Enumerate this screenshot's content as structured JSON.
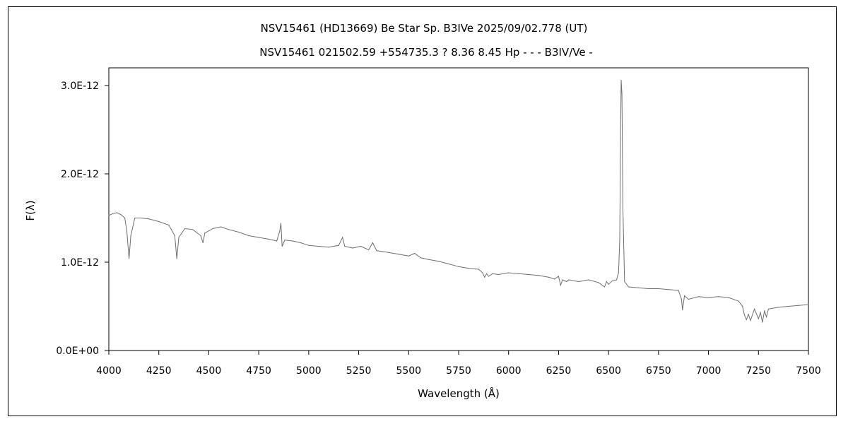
{
  "chart_data": {
    "type": "line",
    "title": "NSV15461 (HD13669)   Be Star   Sp. B3IVe   2025/09/02.778 (UT)",
    "subtitle": "NSV15461 021502.59 +554735.3 ? 8.36 8.45 Hp - - - B3IV/Ve -",
    "xlabel": "Wavelength (Å)",
    "ylabel": "F(λ)",
    "xlim": [
      4000,
      7500
    ],
    "ylim": [
      0,
      3.2e-12
    ],
    "x_ticks": [
      4000,
      4250,
      4500,
      4750,
      5000,
      5250,
      5500,
      5750,
      6000,
      6250,
      6500,
      6750,
      7000,
      7250,
      7500
    ],
    "y_ticks": [
      0,
      1e-12,
      2e-12,
      3e-12
    ],
    "y_tick_labels": [
      "0.0E+00",
      "1.0E-12",
      "2.0E-12",
      "3.0E-12"
    ],
    "grid": false,
    "legend": "none",
    "line_color": "#6e6e6e",
    "series": [
      {
        "x": [
          4000,
          4020,
          4040,
          4060,
          4080,
          4090,
          4101,
          4110,
          4130,
          4160,
          4200,
          4250,
          4300,
          4330,
          4340,
          4350,
          4380,
          4420,
          4460,
          4471,
          4480,
          4520,
          4560,
          4600,
          4650,
          4700,
          4750,
          4800,
          4840,
          4855,
          4861,
          4867,
          4880,
          4920,
          4960,
          5000,
          5050,
          5100,
          5150,
          5169,
          5180,
          5220,
          5260,
          5300,
          5320,
          5340,
          5400,
          5450,
          5500,
          5530,
          5560,
          5600,
          5650,
          5700,
          5750,
          5800,
          5850,
          5870,
          5880,
          5890,
          5900,
          5920,
          5950,
          6000,
          6050,
          6100,
          6150,
          6200,
          6230,
          6250,
          6260,
          6270,
          6290,
          6300,
          6350,
          6400,
          6450,
          6480,
          6490,
          6500,
          6520,
          6540,
          6550,
          6556,
          6560,
          6563,
          6567,
          6572,
          6580,
          6600,
          6650,
          6700,
          6750,
          6800,
          6850,
          6865,
          6870,
          6880,
          6900,
          6950,
          7000,
          7050,
          7100,
          7150,
          7170,
          7180,
          7190,
          7200,
          7210,
          7230,
          7250,
          7260,
          7270,
          7280,
          7290,
          7300,
          7350,
          7400,
          7450,
          7500
        ],
        "y": [
          1.53e-12,
          1.55e-12,
          1.56e-12,
          1.54e-12,
          1.5e-12,
          1.35e-12,
          1.04e-12,
          1.3e-12,
          1.5e-12,
          1.5e-12,
          1.49e-12,
          1.46e-12,
          1.42e-12,
          1.3e-12,
          1.04e-12,
          1.28e-12,
          1.38e-12,
          1.37e-12,
          1.3e-12,
          1.22e-12,
          1.33e-12,
          1.38e-12,
          1.4e-12,
          1.37e-12,
          1.34e-12,
          1.3e-12,
          1.28e-12,
          1.26e-12,
          1.24e-12,
          1.35e-12,
          1.44e-12,
          1.18e-12,
          1.25e-12,
          1.24e-12,
          1.22e-12,
          1.19e-12,
          1.18e-12,
          1.17e-12,
          1.19e-12,
          1.28e-12,
          1.18e-12,
          1.16e-12,
          1.18e-12,
          1.14e-12,
          1.22e-12,
          1.13e-12,
          1.11e-12,
          1.09e-12,
          1.07e-12,
          1.1e-12,
          1.05e-12,
          1.03e-12,
          1.01e-12,
          9.8e-13,
          9.5e-13,
          9.3e-13,
          9.2e-13,
          8.8e-13,
          8.3e-13,
          8.7e-13,
          8.4e-13,
          8.7e-13,
          8.6e-13,
          8.8e-13,
          8.7e-13,
          8.6e-13,
          8.5e-13,
          8.3e-13,
          8.1e-13,
          8.4e-13,
          7.4e-13,
          8e-13,
          7.8e-13,
          8e-13,
          7.8e-13,
          8e-13,
          7.7e-13,
          7.2e-13,
          7.8e-13,
          7.5e-13,
          7.9e-13,
          8e-13,
          8.8e-13,
          1.25e-12,
          2.4e-12,
          3.06e-12,
          2.9e-12,
          1.6e-12,
          7.8e-13,
          7.2e-13,
          7.1e-13,
          7e-13,
          7e-13,
          6.9e-13,
          6.8e-13,
          5.8e-13,
          4.6e-13,
          6.2e-13,
          5.8e-13,
          6.1e-13,
          6e-13,
          6.1e-13,
          6e-13,
          5.6e-13,
          5e-13,
          4e-13,
          3.5e-13,
          4.1e-13,
          3.4e-13,
          4.7e-13,
          3.6e-13,
          4.3e-13,
          3.2e-13,
          4.5e-13,
          3.8e-13,
          4.7e-13,
          4.9e-13,
          5e-13,
          5.1e-13,
          5.2e-13
        ]
      }
    ]
  }
}
